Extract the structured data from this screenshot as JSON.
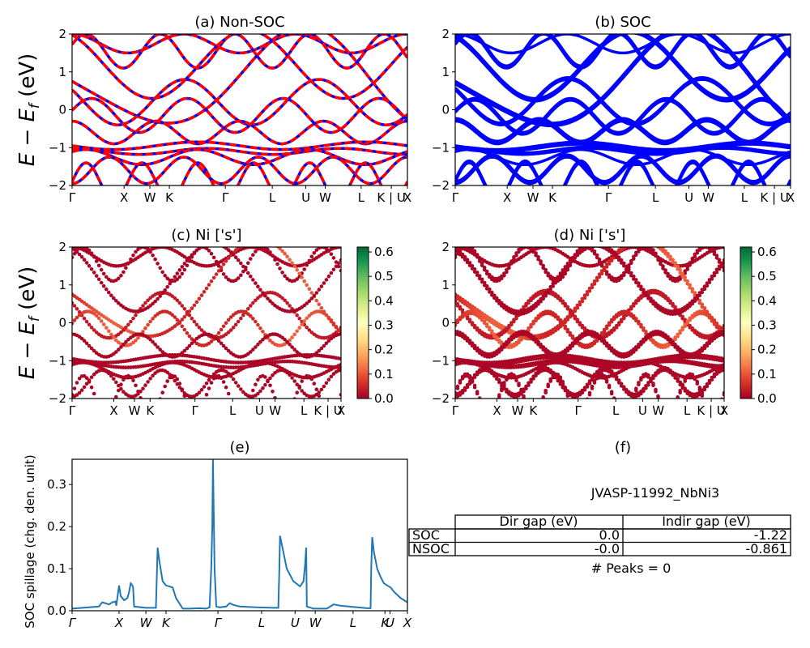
{
  "chart_data": [
    {
      "id": "a",
      "type": "line",
      "title": "(a) Non-SOC",
      "ylabel": "E − E_f (eV)",
      "ylim": [
        -2,
        2
      ],
      "yticks": [
        "2",
        "1",
        "0",
        "−1",
        "−2"
      ],
      "kpath": [
        {
          "label": "Γ",
          "pos": 0.0
        },
        {
          "label": "X",
          "pos": 0.155
        },
        {
          "label": "W",
          "pos": 0.232
        },
        {
          "label": "K",
          "pos": 0.29
        },
        {
          "label": "Γ",
          "pos": 0.457
        },
        {
          "label": "L",
          "pos": 0.597
        },
        {
          "label": "U",
          "pos": 0.697
        },
        {
          "label": "W",
          "pos": 0.755
        },
        {
          "label": "L",
          "pos": 0.862
        },
        {
          "label": "K | U",
          "pos": 0.952
        },
        {
          "label": "X",
          "pos": 1.0
        }
      ],
      "colors": {
        "band": "#0000ff",
        "overlay": "#ff0000"
      }
    },
    {
      "id": "b",
      "type": "line",
      "title": "(b) SOC",
      "ylim": [
        -2,
        2
      ],
      "yticks": [
        "2",
        "1",
        "0",
        "−1",
        "−2"
      ],
      "kpath": [
        {
          "label": "Γ",
          "pos": 0.0
        },
        {
          "label": "X",
          "pos": 0.155
        },
        {
          "label": "W",
          "pos": 0.232
        },
        {
          "label": "K",
          "pos": 0.29
        },
        {
          "label": "Γ",
          "pos": 0.457
        },
        {
          "label": "L",
          "pos": 0.597
        },
        {
          "label": "U",
          "pos": 0.697
        },
        {
          "label": "W",
          "pos": 0.755
        },
        {
          "label": "L",
          "pos": 0.862
        },
        {
          "label": "K | U",
          "pos": 0.952
        },
        {
          "label": "X",
          "pos": 1.0
        }
      ],
      "colors": {
        "band": "#0000ff"
      }
    },
    {
      "id": "c",
      "type": "scatter",
      "title": "(c)  Ni ['s']",
      "ylabel": "E − E_f (eV)",
      "ylim": [
        -2,
        2
      ],
      "yticks": [
        "2",
        "1",
        "0",
        "−1",
        "−2"
      ],
      "kpath": [
        {
          "label": "Γ",
          "pos": 0.0
        },
        {
          "label": "X",
          "pos": 0.155
        },
        {
          "label": "W",
          "pos": 0.232
        },
        {
          "label": "K",
          "pos": 0.29
        },
        {
          "label": "Γ",
          "pos": 0.457
        },
        {
          "label": "L",
          "pos": 0.597
        },
        {
          "label": "U",
          "pos": 0.697
        },
        {
          "label": "W",
          "pos": 0.755
        },
        {
          "label": "L",
          "pos": 0.862
        },
        {
          "label": "K | U",
          "pos": 0.952
        },
        {
          "label": "X",
          "pos": 1.0
        }
      ],
      "colorbar": {
        "min": 0.0,
        "max": 0.62,
        "ticks": [
          "0.6",
          "0.5",
          "0.4",
          "0.3",
          "0.2",
          "0.1",
          "0.0"
        ],
        "colormap": "RdYlGn"
      }
    },
    {
      "id": "d",
      "type": "scatter",
      "title": "(d) Ni ['s']",
      "ylim": [
        -2,
        2
      ],
      "yticks": [
        "2",
        "1",
        "0",
        "−1",
        "−2"
      ],
      "kpath": [
        {
          "label": "Γ",
          "pos": 0.0
        },
        {
          "label": "X",
          "pos": 0.155
        },
        {
          "label": "W",
          "pos": 0.232
        },
        {
          "label": "K",
          "pos": 0.29
        },
        {
          "label": "Γ",
          "pos": 0.457
        },
        {
          "label": "L",
          "pos": 0.597
        },
        {
          "label": "U",
          "pos": 0.697
        },
        {
          "label": "W",
          "pos": 0.755
        },
        {
          "label": "L",
          "pos": 0.862
        },
        {
          "label": "K | U",
          "pos": 0.952
        },
        {
          "label": "X",
          "pos": 1.0
        }
      ],
      "colorbar": {
        "min": 0.0,
        "max": 0.62,
        "ticks": [
          "0.6",
          "0.5",
          "0.4",
          "0.3",
          "0.2",
          "0.1",
          "0.0"
        ],
        "colormap": "RdYlGn"
      }
    },
    {
      "id": "e",
      "type": "line",
      "title": "(e)",
      "ylabel": "SOC spillage (chg. den. unit)",
      "ylim": [
        0,
        0.36
      ],
      "yticks": [
        "0.3",
        "0.2",
        "0.1",
        "0.0"
      ],
      "kpath": [
        {
          "label": "Γ",
          "pos": 0.0
        },
        {
          "label": "X",
          "pos": 0.14
        },
        {
          "label": "W",
          "pos": 0.22
        },
        {
          "label": "K",
          "pos": 0.28
        },
        {
          "label": "Γ",
          "pos": 0.435
        },
        {
          "label": "L",
          "pos": 0.565
        },
        {
          "label": "U",
          "pos": 0.665
        },
        {
          "label": "W",
          "pos": 0.725
        },
        {
          "label": "L",
          "pos": 0.838
        },
        {
          "label": "K",
          "pos": 0.933
        },
        {
          "label": "U",
          "pos": 0.948
        },
        {
          "label": "X",
          "pos": 1.0
        }
      ],
      "series": [
        {
          "color": "#1f77b4",
          "x": [
            0.0,
            0.05,
            0.08,
            0.09,
            0.11,
            0.12,
            0.13,
            0.132,
            0.14,
            0.145,
            0.155,
            0.165,
            0.17,
            0.175,
            0.18,
            0.182,
            0.185,
            0.22,
            0.25,
            0.255,
            0.26,
            0.27,
            0.28,
            0.29,
            0.3,
            0.31,
            0.33,
            0.35,
            0.38,
            0.4,
            0.41,
            0.415,
            0.418,
            0.42,
            0.425,
            0.43,
            0.44,
            0.46,
            0.47,
            0.48,
            0.5,
            0.55,
            0.6,
            0.615,
            0.618,
            0.62,
            0.63,
            0.64,
            0.66,
            0.68,
            0.69,
            0.695,
            0.698,
            0.7,
            0.72,
            0.76,
            0.78,
            0.8,
            0.85,
            0.88,
            0.89,
            0.892,
            0.895,
            0.9,
            0.91,
            0.92,
            0.93,
            0.94,
            0.95,
            0.96,
            0.98,
            1.0
          ],
          "y": [
            0.005,
            0.008,
            0.01,
            0.02,
            0.015,
            0.02,
            0.022,
            0.012,
            0.06,
            0.035,
            0.025,
            0.03,
            0.045,
            0.065,
            0.06,
            0.055,
            0.01,
            0.007,
            0.007,
            0.15,
            0.12,
            0.07,
            0.06,
            0.058,
            0.055,
            0.03,
            0.005,
            0.005,
            0.006,
            0.005,
            0.008,
            0.1,
            0.2,
            0.36,
            0.1,
            0.01,
            0.008,
            0.01,
            0.018,
            0.014,
            0.01,
            0.008,
            0.007,
            0.007,
            0.1,
            0.178,
            0.14,
            0.1,
            0.07,
            0.058,
            0.07,
            0.11,
            0.15,
            0.01,
            0.005,
            0.005,
            0.015,
            0.012,
            0.008,
            0.006,
            0.006,
            0.1,
            0.175,
            0.14,
            0.1,
            0.08,
            0.065,
            0.06,
            0.055,
            0.045,
            0.03,
            0.02
          ]
        }
      ]
    }
  ],
  "info_panel": {
    "title": "(f)",
    "material": "JVASP-11992_NbNi3",
    "table": {
      "headers": [
        "",
        "Dir gap (eV)",
        "Indir gap (eV)"
      ],
      "rows": [
        [
          "SOC",
          "0.0",
          "-1.22"
        ],
        [
          "NSOC",
          "-0.0",
          "-0.861"
        ]
      ]
    },
    "peaks": "# Peaks = 0"
  }
}
